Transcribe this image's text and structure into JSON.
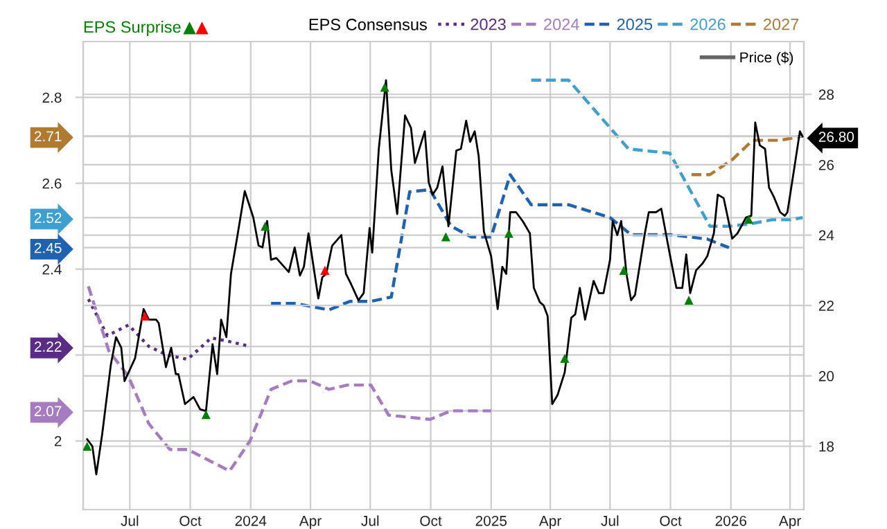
{
  "chart_data": {
    "type": "line",
    "legend_title": "EPS Consensus",
    "xlim": [
      "2023-04-21",
      "2026-04-22"
    ],
    "xticks": [
      {
        "value": "2023-07-01",
        "label": "Jul"
      },
      {
        "value": "2023-10-01",
        "label": "Oct"
      },
      {
        "value": "2024-01-01",
        "label": "2024"
      },
      {
        "value": "2024-04-01",
        "label": "Apr"
      },
      {
        "value": "2024-07-01",
        "label": "Jul"
      },
      {
        "value": "2024-10-01",
        "label": "Oct"
      },
      {
        "value": "2025-01-01",
        "label": "2025"
      },
      {
        "value": "2025-04-01",
        "label": "Apr"
      },
      {
        "value": "2025-07-01",
        "label": "Jul"
      },
      {
        "value": "2025-10-01",
        "label": "Oct"
      },
      {
        "value": "2026-01-01",
        "label": "2026"
      },
      {
        "value": "2026-04-01",
        "label": "Apr"
      }
    ],
    "ylim": [
      1.84,
      2.93
    ],
    "yticks": [
      2,
      {
        "value": 2.07,
        "label": "2.07"
      },
      {
        "value": 2.2,
        "label": null
      },
      {
        "value": 2.22,
        "label": "2.22"
      },
      2.4,
      {
        "value": 2.45,
        "label": "2.45"
      },
      {
        "value": 2.52,
        "label": "2.52"
      },
      2.6,
      {
        "value": 2.71,
        "label": "2.71"
      },
      2.8
    ],
    "y2lim": [
      16.2,
      29.5
    ],
    "y2ticks": [
      18,
      20,
      22,
      24,
      26,
      {
        "value": 26.8,
        "label": "26.80"
      },
      28
    ],
    "grid": true,
    "legend": "top",
    "series": [
      {
        "name": "2023",
        "axis": "y",
        "color": "#5b2c83",
        "line_style": "dotted",
        "x": [
          "2023-04-29",
          "2023-05-28",
          "2023-06-29",
          "2023-07-30",
          "2023-08-27",
          "2023-09-27",
          "2023-11-02",
          "2023-12-04",
          "2023-12-31"
        ],
        "values": [
          2.33,
          2.245,
          2.27,
          2.22,
          2.2,
          2.19,
          2.24,
          2.23,
          2.22
        ]
      },
      {
        "name": "2024",
        "axis": "y",
        "color": "#a57cc0",
        "line_style": "dashed",
        "x": [
          "2023-04-29",
          "2023-05-30",
          "2023-06-29",
          "2023-07-30",
          "2023-08-31",
          "2023-09-27",
          "2023-10-29",
          "2023-11-30",
          "2023-12-31",
          "2024-02-01",
          "2024-03-04",
          "2024-03-31",
          "2024-04-29",
          "2024-05-27",
          "2024-07-02",
          "2024-07-29",
          "2024-09-30",
          "2024-11-01",
          "2025-01-01"
        ],
        "values": [
          2.36,
          2.21,
          2.15,
          2.04,
          1.98,
          1.98,
          1.955,
          1.93,
          2.0,
          2.12,
          2.14,
          2.14,
          2.12,
          2.13,
          2.13,
          2.06,
          2.05,
          2.07,
          2.07
        ]
      },
      {
        "name": "2025",
        "axis": "y",
        "color": "#1f63b0",
        "line_style": "dashed",
        "x": [
          "2024-02-01",
          "2024-03-10",
          "2024-04-29",
          "2024-05-31",
          "2024-07-02",
          "2024-08-02",
          "2024-08-30",
          "2024-09-30",
          "2024-11-01",
          "2024-12-02",
          "2025-01-01",
          "2025-01-30",
          "2025-03-03",
          "2025-04-29",
          "2025-07-01",
          "2025-08-02",
          "2025-10-02",
          "2025-11-26",
          "2025-12-29"
        ],
        "values": [
          2.32,
          2.32,
          2.305,
          2.325,
          2.325,
          2.335,
          2.58,
          2.585,
          2.5,
          2.475,
          2.475,
          2.62,
          2.55,
          2.55,
          2.52,
          2.48,
          2.48,
          2.47,
          2.45
        ]
      },
      {
        "name": "2026",
        "axis": "y",
        "color": "#3ea0cf",
        "line_style": "dashed",
        "x": [
          "2025-03-03",
          "2025-04-29",
          "2025-07-29",
          "2025-09-30",
          "2025-11-30",
          "2025-12-31",
          "2026-01-28",
          "2026-03-05",
          "2026-04-01",
          "2026-04-20"
        ],
        "values": [
          2.84,
          2.84,
          2.68,
          2.67,
          2.5,
          2.5,
          2.505,
          2.515,
          2.515,
          2.52
        ]
      },
      {
        "name": "2027",
        "axis": "y",
        "color": "#b07a30",
        "line_style": "dashed",
        "x": [
          "2025-11-02",
          "2025-11-30",
          "2026-01-03",
          "2026-02-03",
          "2026-03-17",
          "2026-04-20"
        ],
        "values": [
          2.62,
          2.62,
          2.655,
          2.7,
          2.7,
          2.71
        ]
      },
      {
        "name": "Price ($)",
        "axis": "y2",
        "color": "#000000",
        "line_style": "solid",
        "x": [
          "2023-04-27",
          "2023-05-05",
          "2023-05-11",
          "2023-05-20",
          "2023-06-02",
          "2023-06-10",
          "2023-06-18",
          "2023-06-23",
          "2023-07-09",
          "2023-07-22",
          "2023-07-30",
          "2023-08-10",
          "2023-08-14",
          "2023-08-25",
          "2023-09-02",
          "2023-09-09",
          "2023-09-13",
          "2023-09-23",
          "2023-10-06",
          "2023-10-16",
          "2023-10-25",
          "2023-11-04",
          "2023-11-11",
          "2023-11-17",
          "2023-11-25",
          "2023-12-02",
          "2023-12-12",
          "2023-12-23",
          "2024-01-05",
          "2024-01-13",
          "2024-01-19",
          "2024-01-26",
          "2024-02-01",
          "2024-02-09",
          "2024-02-28",
          "2024-03-08",
          "2024-03-16",
          "2024-03-22",
          "2024-03-29",
          "2024-04-13",
          "2024-04-19",
          "2024-04-25",
          "2024-05-04",
          "2024-05-18",
          "2024-05-25",
          "2024-06-02",
          "2024-06-13",
          "2024-06-21",
          "2024-06-30",
          "2024-07-04",
          "2024-07-14",
          "2024-07-25",
          "2024-08-02",
          "2024-08-11",
          "2024-08-23",
          "2024-09-01",
          "2024-09-07",
          "2024-09-22",
          "2024-09-28",
          "2024-10-04",
          "2024-10-11",
          "2024-10-19",
          "2024-10-28",
          "2024-11-09",
          "2024-11-16",
          "2024-11-24",
          "2024-11-30",
          "2024-12-07",
          "2024-12-13",
          "2024-12-21",
          "2025-01-01",
          "2025-01-11",
          "2025-01-18",
          "2025-01-24",
          "2025-01-30",
          "2025-02-08",
          "2025-02-18",
          "2025-03-01",
          "2025-03-07",
          "2025-03-16",
          "2025-03-22",
          "2025-03-28",
          "2025-04-04",
          "2025-04-12",
          "2025-04-23",
          "2025-05-03",
          "2025-05-09",
          "2025-05-16",
          "2025-05-24",
          "2025-06-06",
          "2025-06-14",
          "2025-06-21",
          "2025-07-01",
          "2025-07-05",
          "2025-07-12",
          "2025-07-18",
          "2025-07-26",
          "2025-08-02",
          "2025-08-08",
          "2025-08-23",
          "2025-08-29",
          "2025-09-09",
          "2025-09-17",
          "2025-09-30",
          "2025-10-10",
          "2025-10-19",
          "2025-10-25",
          "2025-10-31",
          "2025-11-09",
          "2025-11-19",
          "2025-11-26",
          "2025-12-06",
          "2025-12-12",
          "2025-12-21",
          "2026-01-03",
          "2026-01-11",
          "2026-01-24",
          "2026-02-01",
          "2026-02-07",
          "2026-02-14",
          "2026-02-22",
          "2026-02-28",
          "2026-03-07",
          "2026-03-17",
          "2026-03-24",
          "2026-03-28",
          "2026-04-07",
          "2026-04-16",
          "2026-04-20"
        ],
        "values": [
          18.2,
          18.0,
          17.2,
          18.35,
          20.3,
          21.1,
          20.8,
          19.85,
          20.5,
          21.9,
          21.6,
          21.6,
          21.5,
          20.25,
          20.8,
          20.05,
          20.05,
          19.2,
          19.4,
          19.05,
          19.0,
          20.9,
          20.05,
          21.6,
          21.1,
          22.9,
          24.0,
          25.25,
          24.5,
          23.7,
          23.65,
          24.4,
          23.3,
          23.35,
          22.95,
          23.65,
          22.85,
          23.1,
          24.05,
          22.2,
          22.8,
          22.9,
          23.7,
          24.0,
          22.9,
          22.6,
          22.15,
          22.35,
          24.2,
          23.5,
          26.45,
          28.4,
          25.85,
          24.6,
          27.4,
          27.05,
          26.05,
          26.95,
          25.5,
          25.15,
          25.35,
          25.95,
          24.25,
          26.4,
          26.45,
          27.25,
          26.65,
          26.95,
          26.25,
          24.1,
          23.4,
          21.9,
          23.1,
          22.9,
          24.65,
          24.65,
          24.4,
          24.05,
          22.5,
          22.1,
          22.0,
          21.7,
          19.2,
          19.45,
          20.1,
          21.65,
          21.75,
          22.5,
          21.6,
          22.7,
          22.35,
          22.35,
          23.3,
          24.4,
          24.0,
          24.4,
          22.9,
          22.15,
          22.3,
          24.05,
          24.65,
          24.65,
          24.75,
          23.45,
          22.5,
          22.5,
          23.45,
          22.35,
          23.0,
          23.2,
          23.4,
          24.05,
          25.15,
          25.05,
          23.9,
          24.05,
          24.5,
          24.55,
          27.2,
          26.55,
          26.45,
          25.35,
          25.1,
          24.65,
          24.55,
          24.65,
          25.85,
          26.95,
          26.8
        ]
      },
      {
        "name": "EPS Surprise",
        "type": "scatter",
        "axis": "y2",
        "color": "#008000",
        "marker": "triangle",
        "x": [
          "2023-04-27",
          "2023-10-25",
          "2024-01-23",
          "2024-07-23",
          "2024-10-24",
          "2025-01-28",
          "2025-04-23",
          "2025-07-22",
          "2025-10-29",
          "2026-01-28"
        ],
        "values": [
          18.0,
          18.9,
          24.25,
          28.2,
          23.95,
          24.05,
          20.5,
          23.0,
          22.15,
          24.45
        ]
      },
      {
        "type": "scatter",
        "axis": "y2",
        "color": "#ff0000",
        "marker": "triangle",
        "x": [
          "2023-07-24",
          "2024-04-23"
        ],
        "values": [
          21.7,
          23.0
        ]
      }
    ]
  }
}
